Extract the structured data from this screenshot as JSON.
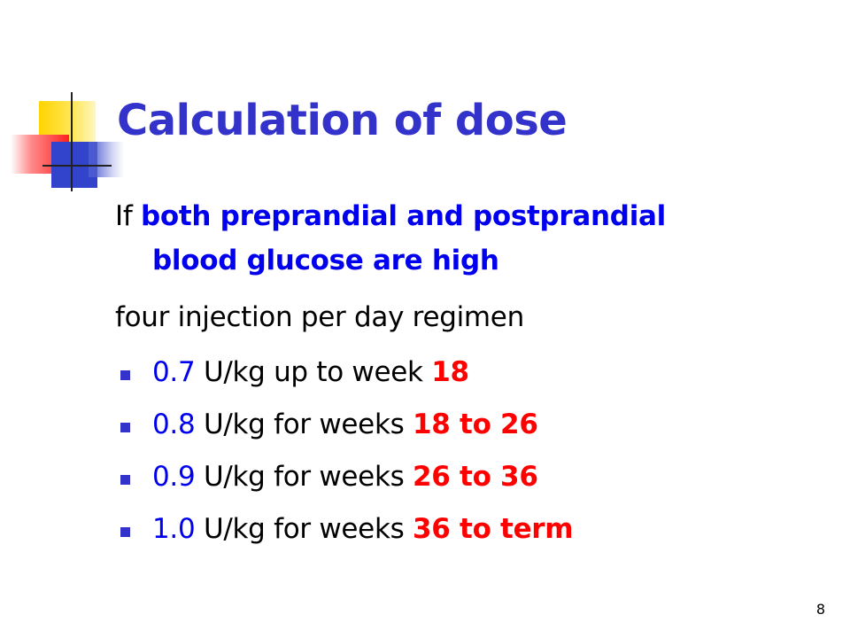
{
  "slide": {
    "title": "Calculation of dose",
    "intro": {
      "prefix": "If ",
      "highlight_line1": "both preprandial and postprandial",
      "highlight_line2": "blood glucose are high"
    },
    "regimen": "four injection per day regimen",
    "bullets": [
      {
        "dose": "0.7",
        "text": " U/kg up to week ",
        "weeks": "18"
      },
      {
        "dose": "0.8",
        "text": " U/kg for weeks ",
        "weeks": "18 to 26"
      },
      {
        "dose": "0.9",
        "text": " U/kg for weeks ",
        "weeks": "26 to 36"
      },
      {
        "dose": "1.0",
        "text": " U/kg for weeks ",
        "weeks": "36 to term"
      }
    ],
    "page_number": "8"
  },
  "colors": {
    "title": "#3333cc",
    "highlight_blue": "#0000ee",
    "highlight_red": "#ff0000",
    "bullet": "#3333cc"
  }
}
